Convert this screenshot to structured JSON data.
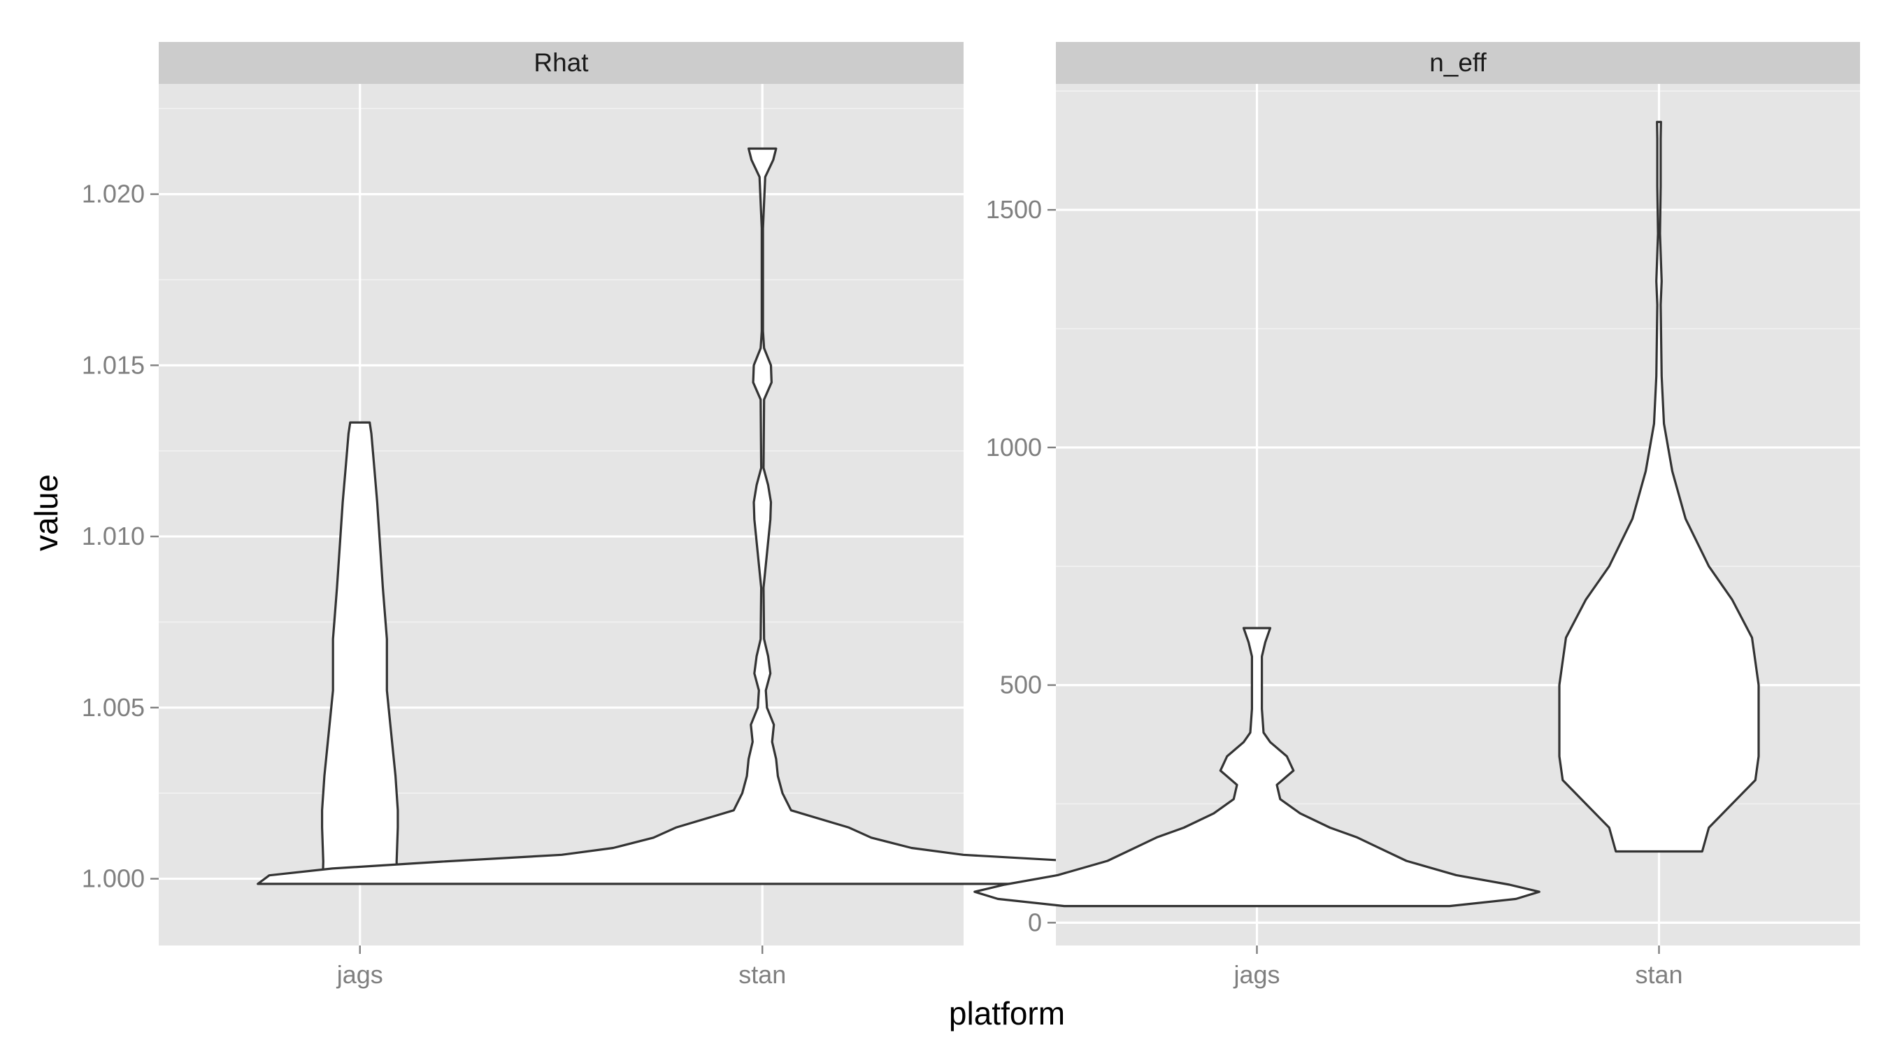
{
  "chart_data": {
    "type": "violin",
    "xlabel": "platform",
    "ylabel": "value",
    "categories": [
      "jags",
      "stan"
    ],
    "grid": true,
    "colors": {
      "panel_bg": "#e5e5e5",
      "strip_bg": "#cccccc",
      "grid": "#ffffff",
      "violin_fill": "#ffffff",
      "violin_stroke": "#333333"
    },
    "facets": [
      {
        "name": "Rhat",
        "ylim": [
          0.99805,
          1.02322
        ],
        "yticks": [
          1.0,
          1.005,
          1.01,
          1.015,
          1.02
        ],
        "ytick_labels": [
          "1.000",
          "1.005",
          "1.010",
          "1.015",
          "1.020"
        ],
        "series": [
          {
            "category": "jags",
            "min": 0.99985,
            "max": 1.01333,
            "density_profile": [
              [
                0.99985,
                0.065
              ],
              [
                1.0005,
                0.064
              ],
              [
                1.0015,
                0.066
              ],
              [
                1.002,
                0.066
              ],
              [
                1.003,
                0.062
              ],
              [
                1.0045,
                0.053
              ],
              [
                1.0055,
                0.047
              ],
              [
                1.007,
                0.047
              ],
              [
                1.0085,
                0.04
              ],
              [
                1.0095,
                0.036
              ],
              [
                1.011,
                0.03
              ],
              [
                1.012,
                0.025
              ],
              [
                1.013,
                0.02
              ],
              [
                1.01333,
                0.017
              ]
            ]
          },
          {
            "category": "stan",
            "min": 0.99985,
            "max": 1.02133,
            "density_profile": [
              [
                0.99985,
                0.88
              ],
              [
                1.0001,
                0.86
              ],
              [
                1.0003,
                0.75
              ],
              [
                1.0005,
                0.56
              ],
              [
                1.0007,
                0.35
              ],
              [
                1.0009,
                0.26
              ],
              [
                1.0012,
                0.19
              ],
              [
                1.0015,
                0.15
              ],
              [
                1.002,
                0.05
              ],
              [
                1.0025,
                0.035
              ],
              [
                1.003,
                0.027
              ],
              [
                1.0035,
                0.024
              ],
              [
                1.004,
                0.017
              ],
              [
                1.0045,
                0.02
              ],
              [
                1.005,
                0.008
              ],
              [
                1.0055,
                0.006
              ],
              [
                1.006,
                0.014
              ],
              [
                1.0065,
                0.01
              ],
              [
                1.007,
                0.003
              ],
              [
                1.0085,
                0.002
              ],
              [
                1.0105,
                0.014
              ],
              [
                1.011,
                0.015
              ],
              [
                1.0115,
                0.01
              ],
              [
                1.012,
                0.002
              ],
              [
                1.014,
                0.003
              ],
              [
                1.0145,
                0.016
              ],
              [
                1.015,
                0.015
              ],
              [
                1.0155,
                0.003
              ],
              [
                1.016,
                0.001
              ],
              [
                1.019,
                0.001
              ],
              [
                1.0205,
                0.005
              ],
              [
                1.021,
                0.019
              ],
              [
                1.02133,
                0.024
              ]
            ]
          }
        ]
      },
      {
        "name": "n_eff",
        "ylim": [
          -48,
          1765
        ],
        "yticks": [
          0,
          500,
          1000,
          1500
        ],
        "ytick_labels": [
          "0",
          "500",
          "1000",
          "1500"
        ],
        "series": [
          {
            "category": "jags",
            "min": 35,
            "max": 620,
            "density_profile": [
              [
                35,
                0.58
              ],
              [
                50,
                0.78
              ],
              [
                65,
                0.85
              ],
              [
                80,
                0.76
              ],
              [
                100,
                0.6
              ],
              [
                130,
                0.45
              ],
              [
                160,
                0.36
              ],
              [
                180,
                0.3
              ],
              [
                200,
                0.22
              ],
              [
                230,
                0.13
              ],
              [
                260,
                0.07
              ],
              [
                290,
                0.06
              ],
              [
                320,
                0.11
              ],
              [
                350,
                0.09
              ],
              [
                380,
                0.04
              ],
              [
                400,
                0.02
              ],
              [
                450,
                0.015
              ],
              [
                500,
                0.015
              ],
              [
                560,
                0.015
              ],
              [
                590,
                0.025
              ],
              [
                620,
                0.04
              ]
            ]
          },
          {
            "category": "stan",
            "min": 150,
            "max": 1685,
            "density_profile": [
              [
                150,
                0.13
              ],
              [
                200,
                0.15
              ],
              [
                250,
                0.22
              ],
              [
                300,
                0.29
              ],
              [
                350,
                0.3
              ],
              [
                400,
                0.3
              ],
              [
                500,
                0.3
              ],
              [
                600,
                0.28
              ],
              [
                680,
                0.22
              ],
              [
                750,
                0.15
              ],
              [
                850,
                0.08
              ],
              [
                950,
                0.04
              ],
              [
                1050,
                0.015
              ],
              [
                1150,
                0.008
              ],
              [
                1300,
                0.005
              ],
              [
                1350,
                0.008
              ],
              [
                1450,
                0.003
              ],
              [
                1550,
                0.005
              ],
              [
                1650,
                0.005
              ],
              [
                1685,
                0.006
              ]
            ]
          }
        ]
      }
    ]
  }
}
